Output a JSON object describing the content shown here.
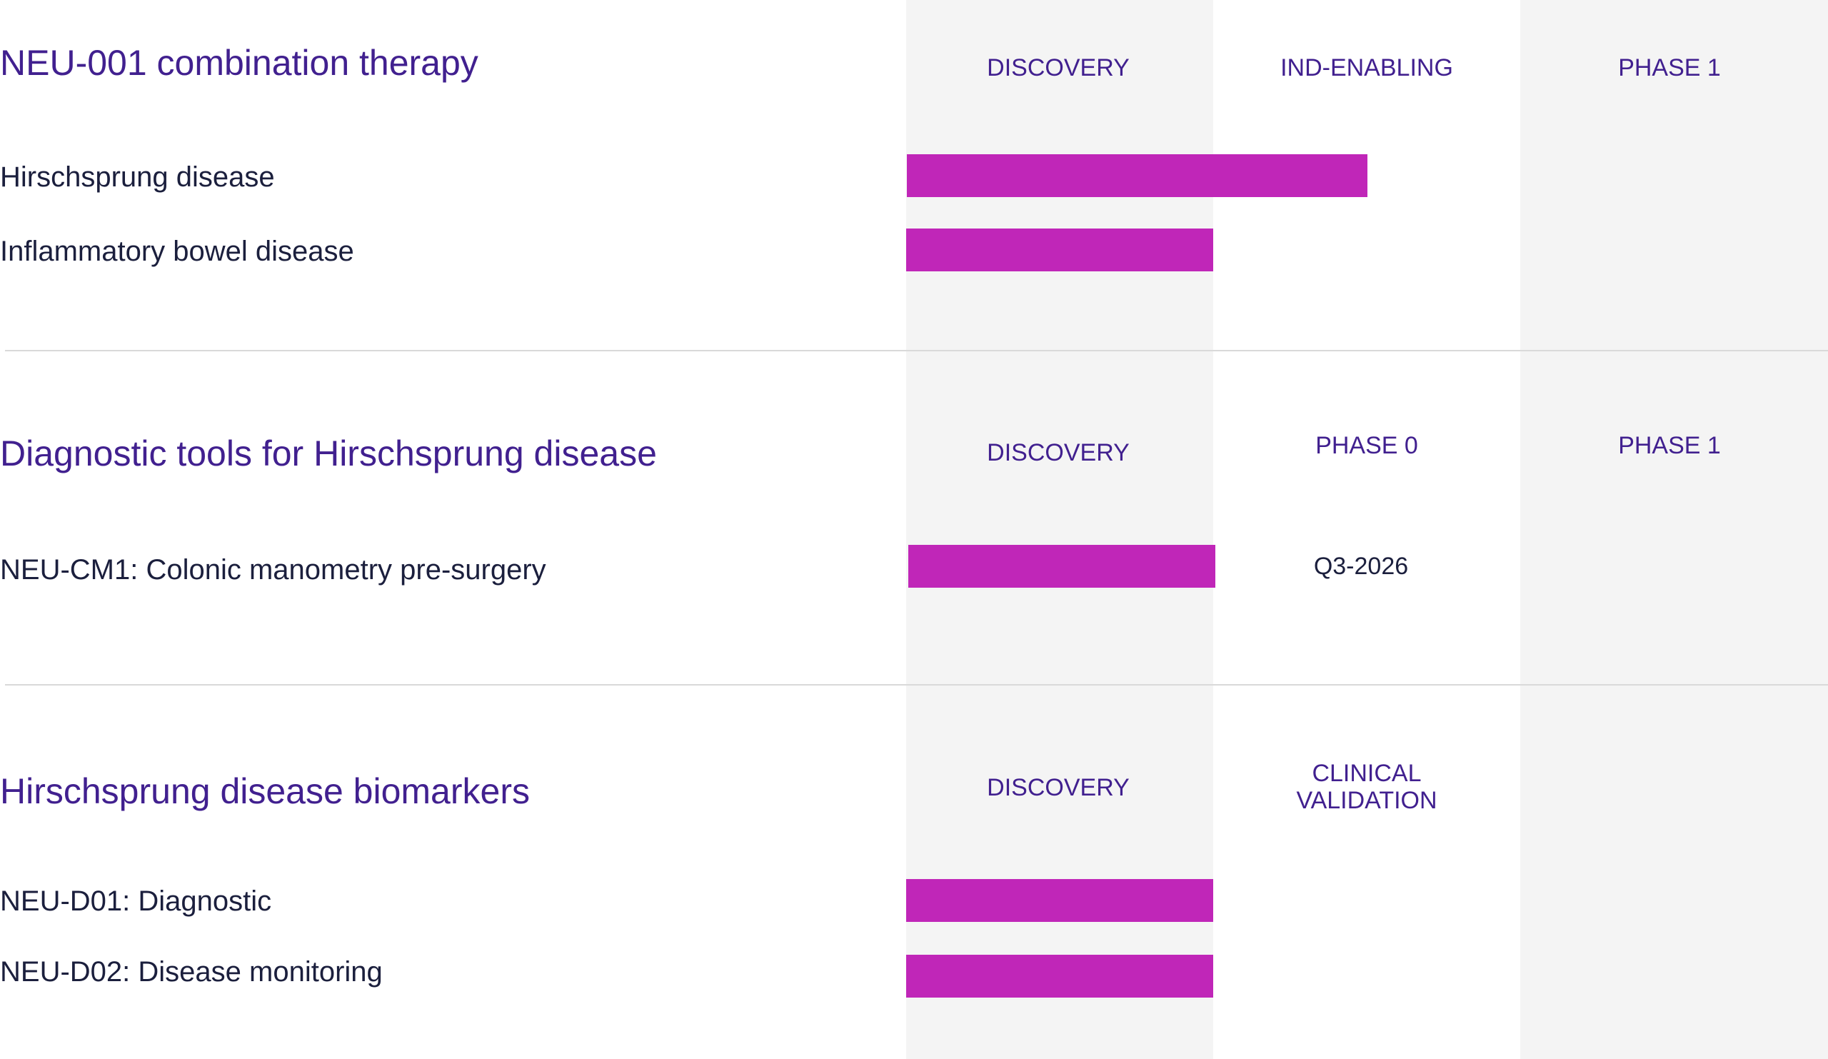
{
  "colors": {
    "stage_column_bg": "#f4f4f4",
    "title": "#41208f",
    "label": "#1b1f3d",
    "bar": "#c026b8",
    "divider": "#d9d9d9"
  },
  "chart_data": {
    "type": "bar",
    "orientation": "horizontal",
    "grid": false,
    "sections": [
      {
        "title": "NEU-001 combination therapy",
        "stages": [
          "DISCOVERY",
          "IND-ENABLING",
          "PHASE 1"
        ],
        "programs": [
          {
            "label": "Hirschsprung disease",
            "progress_stages": 1.5
          },
          {
            "label": "Inflammatory bowel disease",
            "progress_stages": 1.0
          }
        ]
      },
      {
        "title": "Diagnostic tools for Hirschsprung disease",
        "stages": [
          "DISCOVERY",
          "PHASE 0",
          "PHASE 1"
        ],
        "programs": [
          {
            "label": "NEU-CM1: Colonic manometry pre-surgery",
            "progress_stages": 1.0,
            "note": "Q3-2026"
          }
        ]
      },
      {
        "title": "Hirschsprung disease biomarkers",
        "stages": [
          "DISCOVERY",
          "CLINICAL VALIDATION",
          ""
        ],
        "programs": [
          {
            "label": "NEU-D01: Diagnostic",
            "progress_stages": 1.0
          },
          {
            "label": "NEU-D02: Disease monitoring",
            "progress_stages": 1.0
          }
        ]
      }
    ]
  }
}
